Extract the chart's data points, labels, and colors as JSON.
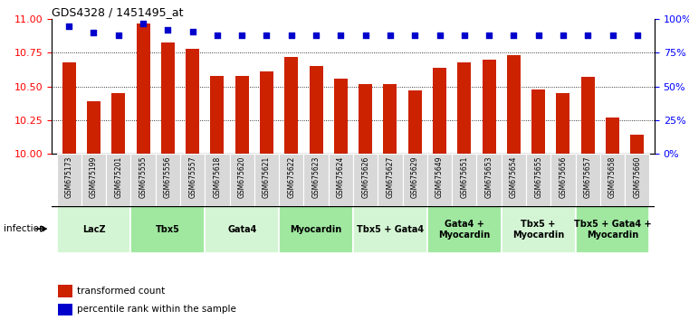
{
  "title": "GDS4328 / 1451495_at",
  "samples": [
    "GSM675173",
    "GSM675199",
    "GSM675201",
    "GSM675555",
    "GSM675556",
    "GSM675557",
    "GSM675618",
    "GSM675620",
    "GSM675621",
    "GSM675622",
    "GSM675623",
    "GSM675624",
    "GSM675626",
    "GSM675627",
    "GSM675629",
    "GSM675649",
    "GSM675651",
    "GSM675653",
    "GSM675654",
    "GSM675655",
    "GSM675656",
    "GSM675657",
    "GSM675658",
    "GSM675660"
  ],
  "bar_values": [
    10.68,
    10.39,
    10.45,
    10.97,
    10.83,
    10.78,
    10.58,
    10.58,
    10.61,
    10.72,
    10.65,
    10.56,
    10.52,
    10.52,
    10.47,
    10.64,
    10.68,
    10.7,
    10.73,
    10.48,
    10.45,
    10.57,
    10.27,
    10.14
  ],
  "percentile_values": [
    95,
    90,
    88,
    97,
    92,
    91,
    88,
    88,
    88,
    88,
    88,
    88,
    88,
    88,
    88,
    88,
    88,
    88,
    88,
    88,
    88,
    88,
    88,
    88
  ],
  "groups": [
    {
      "label": "LacZ",
      "start": 0,
      "end": 3,
      "color": "#d4f5d4"
    },
    {
      "label": "Tbx5",
      "start": 3,
      "end": 6,
      "color": "#a0e8a0"
    },
    {
      "label": "Gata4",
      "start": 6,
      "end": 9,
      "color": "#d4f5d4"
    },
    {
      "label": "Myocardin",
      "start": 9,
      "end": 12,
      "color": "#a0e8a0"
    },
    {
      "label": "Tbx5 + Gata4",
      "start": 12,
      "end": 15,
      "color": "#d4f5d4"
    },
    {
      "label": "Gata4 +\nMyocardin",
      "start": 15,
      "end": 18,
      "color": "#a0e8a0"
    },
    {
      "label": "Tbx5 +\nMyocardin",
      "start": 18,
      "end": 21,
      "color": "#d4f5d4"
    },
    {
      "label": "Tbx5 + Gata4 +\nMyocardin",
      "start": 21,
      "end": 24,
      "color": "#a0e8a0"
    }
  ],
  "bar_color": "#cc2200",
  "dot_color": "#0000cc",
  "ylim_left": [
    10,
    11
  ],
  "ylim_right": [
    0,
    100
  ],
  "yticks_left": [
    10,
    10.25,
    10.5,
    10.75,
    11
  ],
  "yticks_right": [
    0,
    25,
    50,
    75,
    100
  ],
  "ytick_labels_right": [
    "0%",
    "25%",
    "50%",
    "75%",
    "100%"
  ],
  "grid_values": [
    10.25,
    10.5,
    10.75
  ],
  "bar_width": 0.55,
  "tick_bg_color": "#d8d8d8"
}
